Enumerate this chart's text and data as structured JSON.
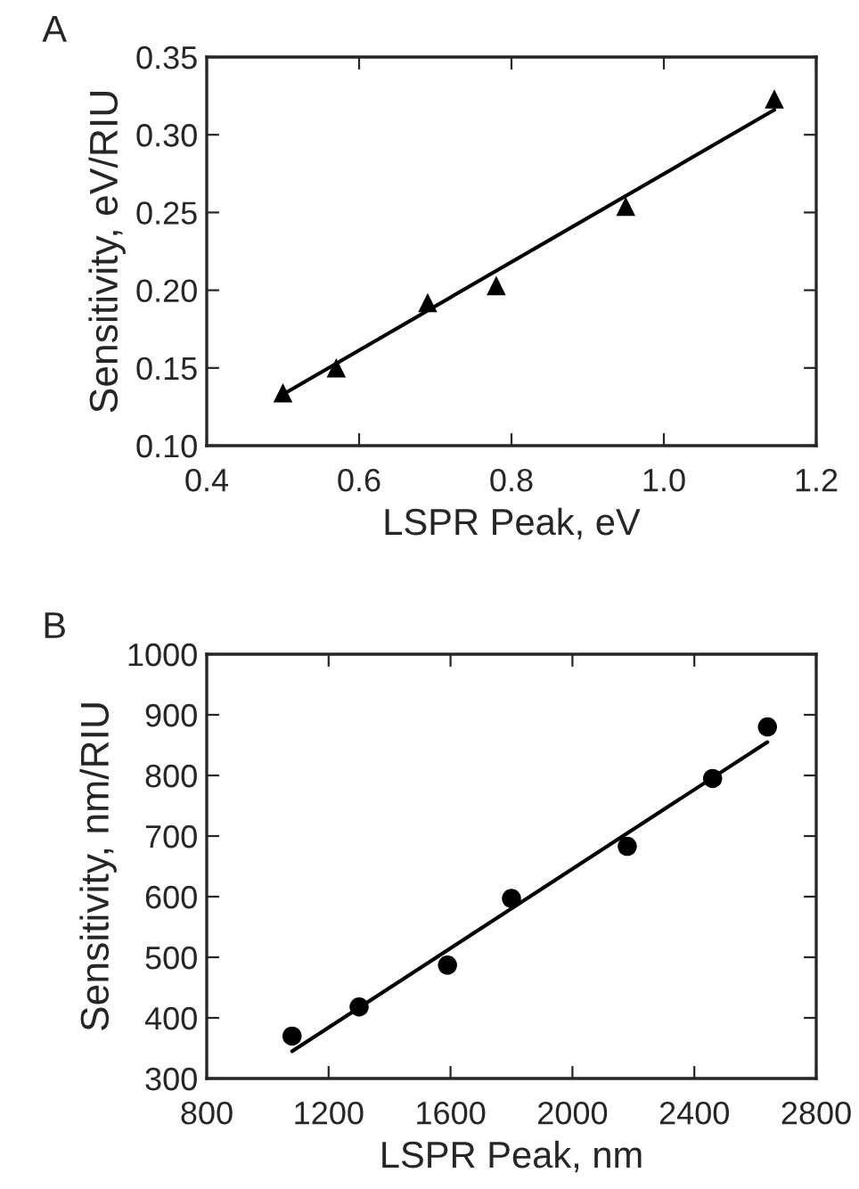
{
  "chart_data": [
    {
      "type": "scatter",
      "annotations": [
        "A"
      ],
      "xlabel": "LSPR Peak, eV",
      "ylabel": "Sensitivity, eV/RIU",
      "grid": false,
      "legend": false,
      "xlim": [
        0.4,
        1.2
      ],
      "xticks": [
        0.4,
        0.6,
        0.8,
        {
          "value": 1.0,
          "label": "1.0"
        },
        1.2
      ],
      "ylim": [
        0.1,
        0.35
      ],
      "yticks": [
        {
          "value": 0.1,
          "label": "0.10"
        },
        0.15,
        {
          "value": 0.2,
          "label": "0.20"
        },
        0.25,
        {
          "value": 0.3,
          "label": "0.30"
        },
        0.35
      ],
      "series": [
        {
          "marker": "triangle",
          "color": "#000000",
          "x": [
            0.5,
            0.57,
            0.69,
            0.78,
            0.95,
            1.145
          ],
          "values": [
            0.134,
            0.15,
            0.192,
            0.203,
            0.254,
            0.323
          ]
        },
        {
          "type": "line",
          "color": "#000000",
          "x": [
            0.5,
            1.145
          ],
          "values": [
            0.133,
            0.316
          ]
        }
      ]
    },
    {
      "type": "scatter",
      "annotations": [
        "B"
      ],
      "xlabel": "LSPR Peak, nm",
      "ylabel": "Sensitivity, nm/RIU",
      "grid": false,
      "legend": false,
      "xlim": [
        800,
        2800
      ],
      "xticks": [
        800,
        1200,
        1600,
        2000,
        2400,
        2800
      ],
      "ylim": [
        300,
        1000
      ],
      "yticks": [
        300,
        400,
        500,
        600,
        700,
        800,
        900,
        1000
      ],
      "series": [
        {
          "marker": "circle",
          "color": "#000000",
          "x": [
            1080,
            1300,
            1590,
            1800,
            2180,
            2460,
            2640
          ],
          "values": [
            370,
            418,
            487,
            597,
            683,
            795,
            880
          ]
        },
        {
          "type": "line",
          "color": "#000000",
          "x": [
            1080,
            2640
          ],
          "values": [
            345,
            855
          ]
        }
      ]
    }
  ]
}
